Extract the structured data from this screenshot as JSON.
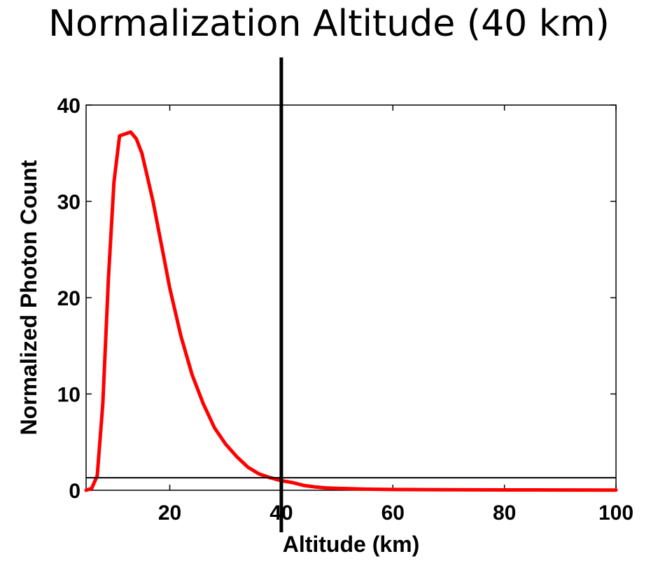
{
  "slide": {
    "title": "Normalization Altitude (40 km)"
  },
  "chart_data": {
    "type": "line",
    "title": "",
    "xlabel": "Altitude (km)",
    "ylabel": "Normalized Photon Count",
    "xlim": [
      5,
      100
    ],
    "ylim": [
      0,
      40
    ],
    "xticks": [
      20,
      40,
      60,
      80,
      100
    ],
    "yticks": [
      0,
      10,
      20,
      30,
      40
    ],
    "grid": false,
    "colors": {
      "series": "#ff0000",
      "marker_line": "#000000",
      "reference_line": "#000000"
    },
    "series": [
      {
        "x": [
          5,
          6,
          7,
          8,
          9,
          10,
          11,
          12,
          13,
          14,
          15,
          16,
          17,
          18,
          19,
          20,
          22,
          24,
          26,
          28,
          30,
          32,
          34,
          36,
          38,
          40,
          42,
          44,
          46,
          48,
          50,
          55,
          60,
          70,
          80,
          90,
          100
        ],
        "y": [
          0,
          0.2,
          1.5,
          9,
          22,
          32,
          36.8,
          37,
          37.2,
          36.5,
          35,
          32.5,
          30,
          27,
          24,
          21,
          16,
          12,
          9,
          6.5,
          4.8,
          3.5,
          2.4,
          1.7,
          1.3,
          1,
          0.8,
          0.5,
          0.35,
          0.25,
          0.2,
          0.12,
          0.08,
          0.05,
          0.04,
          0.03,
          0.02
        ]
      }
    ],
    "annotations": {
      "vertical_line_x": 40,
      "horizontal_line_y": 1.3
    }
  }
}
